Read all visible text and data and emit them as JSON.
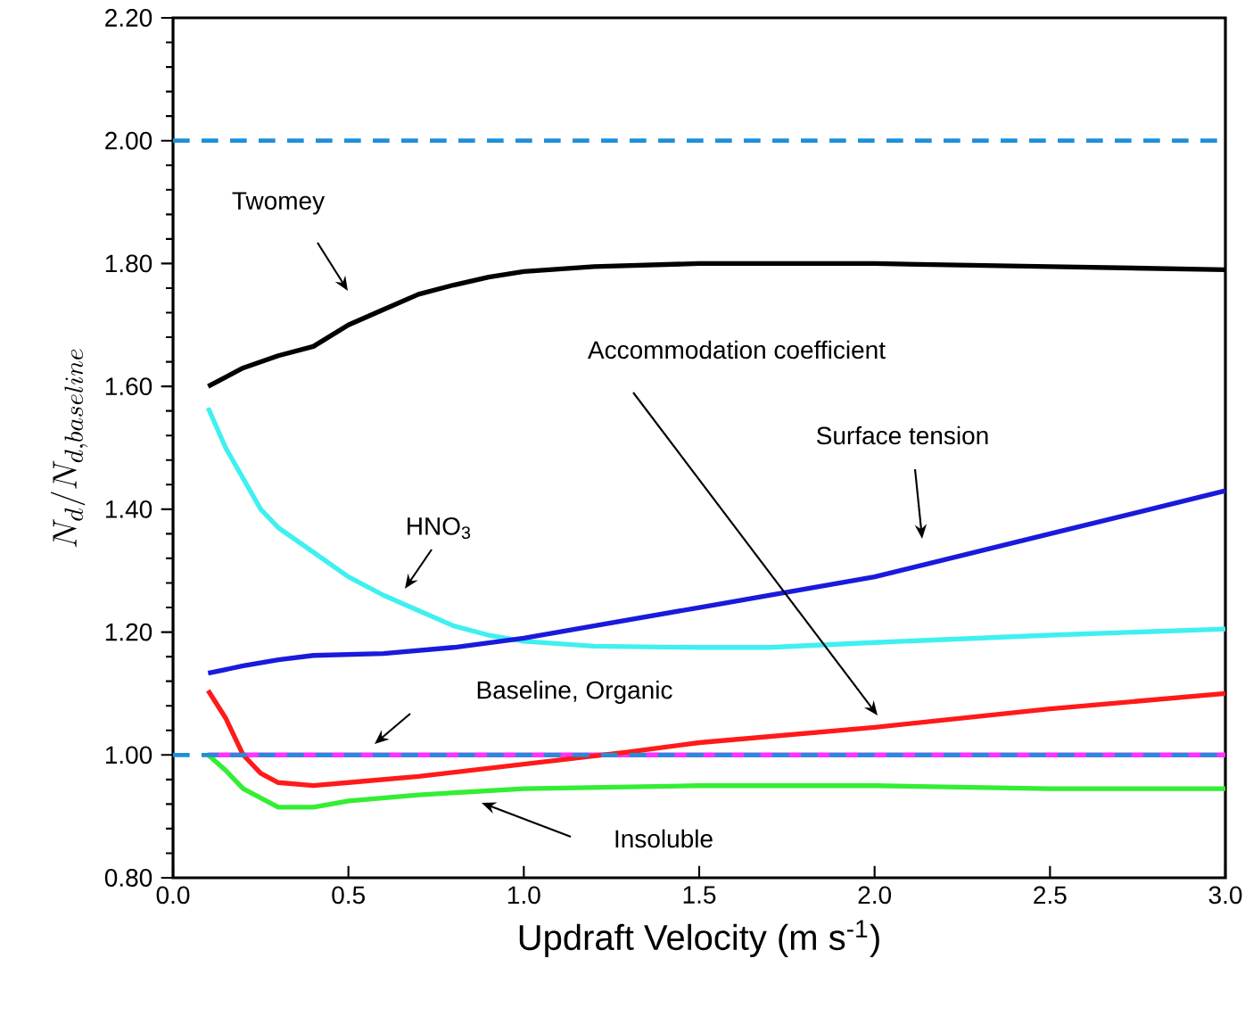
{
  "chart_data": {
    "type": "line",
    "xlabel": "Updraft Velocity (m s$^{-1}$)",
    "ylabel": "N_{d}/N_{d,baseline}",
    "xlim": [
      0,
      3
    ],
    "ylim": [
      0.8,
      2.2
    ],
    "xticks": [
      {
        "value": 0,
        "label": "0.0"
      },
      0.5,
      {
        "value": 1,
        "label": "1.0"
      },
      1.5,
      {
        "value": 2,
        "label": "2.0"
      },
      2.5,
      {
        "value": 3,
        "label": "3.0"
      }
    ],
    "yticks": [
      {
        "value": 0.8,
        "label": "0.80"
      },
      {
        "value": 1.0,
        "label": "1.00"
      },
      {
        "value": 1.2,
        "label": "1.20"
      },
      {
        "value": 1.4,
        "label": "1.40"
      },
      {
        "value": 1.6,
        "label": "1.60"
      },
      {
        "value": 1.8,
        "label": "1.80"
      },
      {
        "value": 2.0,
        "label": "2.00"
      },
      {
        "value": 2.2,
        "label": "2.20"
      }
    ],
    "grid": false,
    "marker": "none",
    "series": [
      {
        "color": "#000000",
        "x": [
          0.1,
          0.2,
          0.3,
          0.4,
          0.5,
          0.6,
          0.7,
          0.8,
          0.9,
          1.0,
          1.2,
          1.5,
          2.0,
          2.5,
          3.0
        ],
        "values": [
          1.6,
          1.63,
          1.65,
          1.665,
          1.7,
          1.725,
          1.75,
          1.765,
          1.778,
          1.787,
          1.795,
          1.8,
          1.8,
          1.795,
          1.79
        ]
      },
      {
        "color": "#40f0f0",
        "x": [
          0.1,
          0.15,
          0.2,
          0.25,
          0.3,
          0.4,
          0.5,
          0.6,
          0.7,
          0.8,
          0.9,
          1.0,
          1.2,
          1.5,
          1.7,
          2.0,
          2.5,
          3.0
        ],
        "values": [
          1.565,
          1.5,
          1.45,
          1.4,
          1.37,
          1.33,
          1.29,
          1.26,
          1.235,
          1.21,
          1.195,
          1.185,
          1.177,
          1.175,
          1.175,
          1.183,
          1.195,
          1.205
        ]
      },
      {
        "color": "#1a1adc",
        "x": [
          0.1,
          0.2,
          0.3,
          0.4,
          0.6,
          0.8,
          1.0,
          1.2,
          1.5,
          2.0,
          2.5,
          3.0
        ],
        "values": [
          1.133,
          1.145,
          1.155,
          1.162,
          1.165,
          1.175,
          1.19,
          1.21,
          1.24,
          1.29,
          1.36,
          1.43
        ]
      },
      {
        "color": "#ff33ff",
        "x": [
          0.1,
          3.0
        ],
        "values": [
          1.0,
          1.0
        ]
      },
      {
        "color": "#ff1a1a",
        "x": [
          0.1,
          0.15,
          0.2,
          0.25,
          0.3,
          0.4,
          0.5,
          0.7,
          1.0,
          1.3,
          1.5,
          2.0,
          2.5,
          3.0
        ],
        "values": [
          1.105,
          1.06,
          1.0,
          0.97,
          0.955,
          0.95,
          0.955,
          0.965,
          0.985,
          1.005,
          1.02,
          1.045,
          1.075,
          1.1
        ]
      },
      {
        "color": "#33ee33",
        "x": [
          0.1,
          0.15,
          0.2,
          0.3,
          0.4,
          0.5,
          0.7,
          1.0,
          1.5,
          2.0,
          2.5,
          3.0
        ],
        "values": [
          1.0,
          0.975,
          0.945,
          0.915,
          0.915,
          0.925,
          0.935,
          0.945,
          0.95,
          0.95,
          0.945,
          0.945
        ]
      }
    ],
    "ref_lines": [
      {
        "axis": "y",
        "value": 2.0,
        "color": "#1f8fd8",
        "line_style": "dashed"
      },
      {
        "axis": "y",
        "value": 1.0,
        "color": "#1f8fd8",
        "line_style": "dashed"
      }
    ],
    "annotations": [
      "Twomey",
      "HNO$_{3}$",
      "Accommodation coefficient",
      "Surface tension",
      "Baseline, Organic",
      "Insoluble"
    ]
  }
}
